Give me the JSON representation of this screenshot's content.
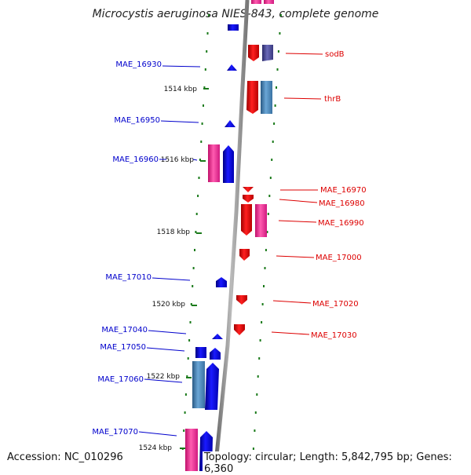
{
  "title": "Microcystis aeruginosa NIES-843, complete genome",
  "footer": {
    "accession": "Accession: NC_010296",
    "summary": "Topology: circular; Length: 5,842,795 bp; Genes: 6,360"
  },
  "colors": {
    "forward_label": "#0000cc",
    "reverse_label": "#dd0000",
    "tick_green": "#1a7a1a",
    "backbone": "#888888",
    "gene_blue": "#1010ee",
    "gene_red": "#ee1111",
    "gene_pink": "#ee2a90",
    "gene_steel": "#4a88bb",
    "gene_navy": "#4a4a9a"
  },
  "ticks": [
    {
      "label": "1514 kbp",
      "kbp": 1514
    },
    {
      "label": "1516 kbp",
      "kbp": 1516
    },
    {
      "label": "1518 kbp",
      "kbp": 1518
    },
    {
      "label": "1520 kbp",
      "kbp": 1520
    },
    {
      "label": "1522 kbp",
      "kbp": 1522
    },
    {
      "label": "1524 kbp",
      "kbp": 1524
    }
  ],
  "left_labels": [
    {
      "label": "MAE_16930"
    },
    {
      "label": "MAE_16950"
    },
    {
      "label": "MAE_16960"
    },
    {
      "label": "MAE_17010"
    },
    {
      "label": "MAE_17040"
    },
    {
      "label": "MAE_17050"
    },
    {
      "label": "MAE_17060"
    },
    {
      "label": "MAE_17070"
    }
  ],
  "right_labels": [
    {
      "label": "sodB"
    },
    {
      "label": "thrB"
    },
    {
      "label": "MAE_16970"
    },
    {
      "label": "MAE_16980"
    },
    {
      "label": "MAE_16990"
    },
    {
      "label": "MAE_17000"
    },
    {
      "label": "MAE_17020"
    },
    {
      "label": "MAE_17030"
    }
  ]
}
